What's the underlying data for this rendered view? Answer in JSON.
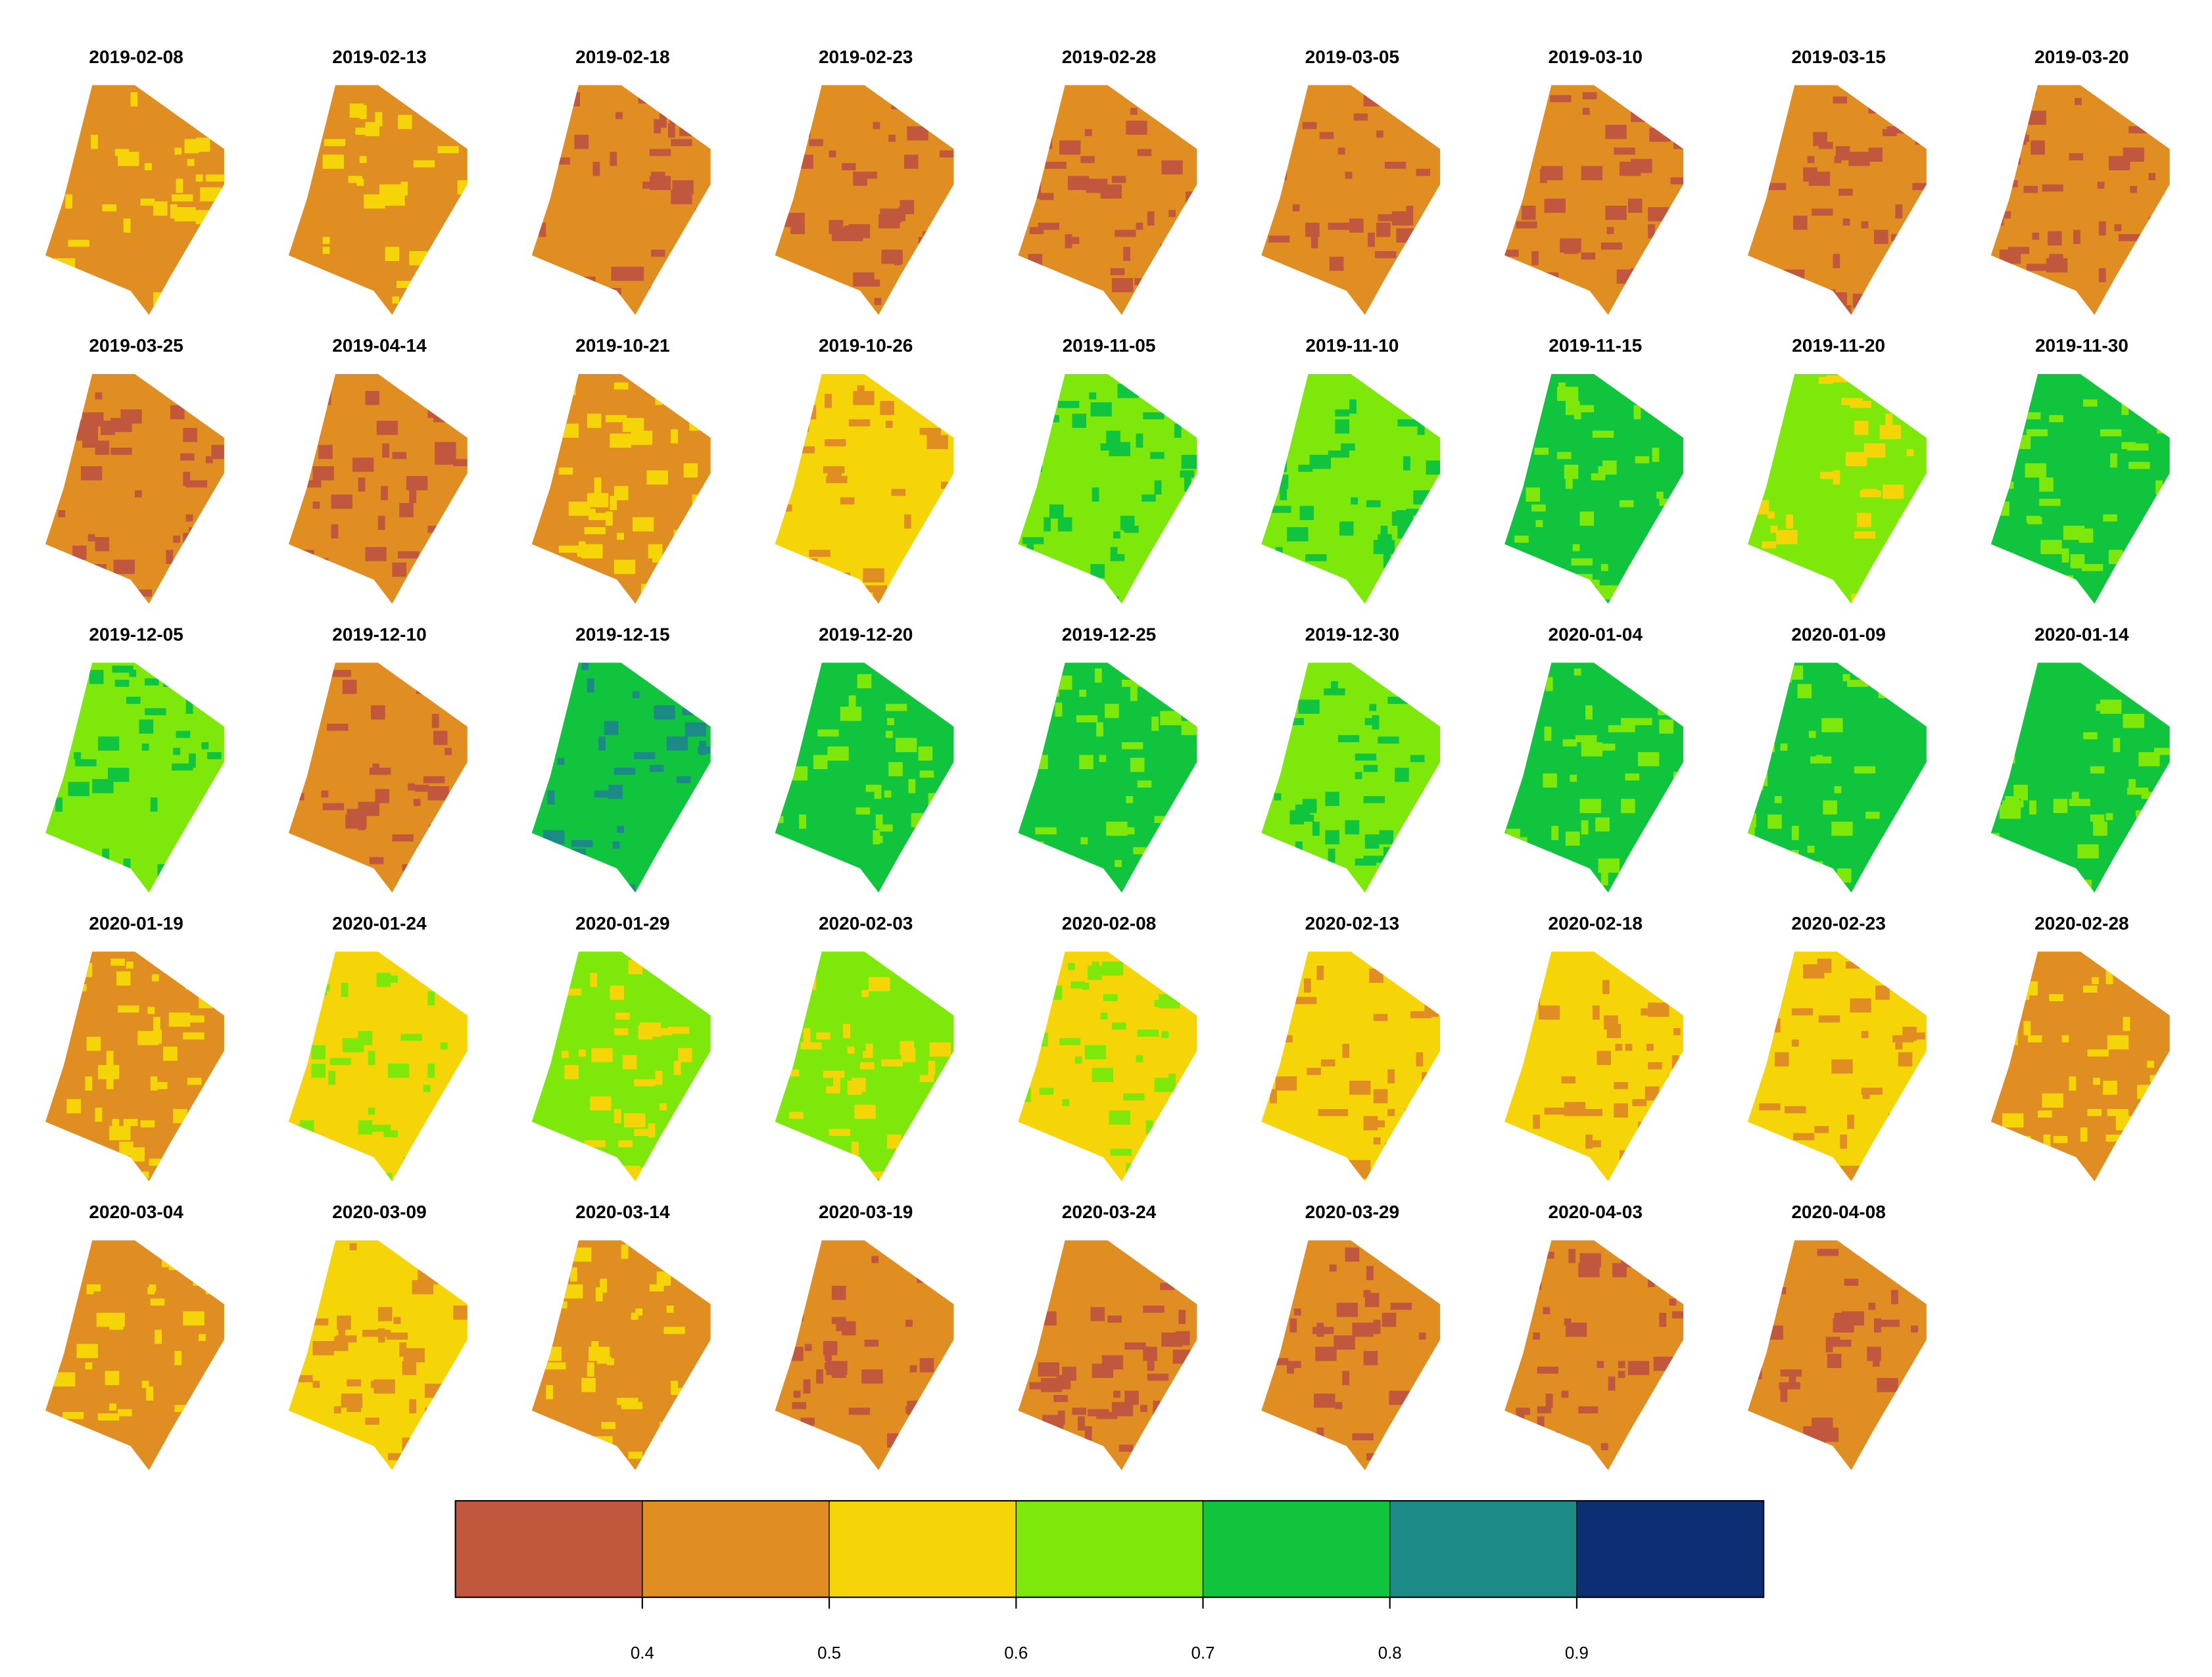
{
  "chart_data": {
    "type": "raster",
    "panels": [
      {
        "date": "2019-02-08",
        "values": [
          0.45,
          0.55
        ]
      },
      {
        "date": "2019-02-13",
        "values": [
          0.45,
          0.55
        ]
      },
      {
        "date": "2019-02-18",
        "values": [
          0.45,
          0.35
        ]
      },
      {
        "date": "2019-02-23",
        "values": [
          0.45,
          0.35
        ]
      },
      {
        "date": "2019-02-28",
        "values": [
          0.45,
          0.35
        ]
      },
      {
        "date": "2019-03-05",
        "values": [
          0.45,
          0.35
        ]
      },
      {
        "date": "2019-03-10",
        "values": [
          0.45,
          0.35
        ]
      },
      {
        "date": "2019-03-15",
        "values": [
          0.45,
          0.35
        ]
      },
      {
        "date": "2019-03-20",
        "values": [
          0.45,
          0.35
        ]
      },
      {
        "date": "2019-03-25",
        "values": [
          0.45,
          0.35
        ]
      },
      {
        "date": "2019-04-14",
        "values": [
          0.45,
          0.35
        ]
      },
      {
        "date": "2019-10-21",
        "values": [
          0.45,
          0.55
        ]
      },
      {
        "date": "2019-10-26",
        "values": [
          0.55,
          0.45
        ]
      },
      {
        "date": "2019-11-05",
        "values": [
          0.65,
          0.75
        ]
      },
      {
        "date": "2019-11-10",
        "values": [
          0.65,
          0.75
        ]
      },
      {
        "date": "2019-11-15",
        "values": [
          0.75,
          0.65
        ]
      },
      {
        "date": "2019-11-20",
        "values": [
          0.65,
          0.55
        ]
      },
      {
        "date": "2019-11-30",
        "values": [
          0.75,
          0.65
        ]
      },
      {
        "date": "2019-12-05",
        "values": [
          0.65,
          0.75
        ]
      },
      {
        "date": "2019-12-10",
        "values": [
          0.45,
          0.35
        ]
      },
      {
        "date": "2019-12-15",
        "values": [
          0.75,
          0.85
        ]
      },
      {
        "date": "2019-12-20",
        "values": [
          0.75,
          0.65
        ]
      },
      {
        "date": "2019-12-25",
        "values": [
          0.75,
          0.65
        ]
      },
      {
        "date": "2019-12-30",
        "values": [
          0.65,
          0.75
        ]
      },
      {
        "date": "2020-01-04",
        "values": [
          0.75,
          0.65
        ]
      },
      {
        "date": "2020-01-09",
        "values": [
          0.75,
          0.65
        ]
      },
      {
        "date": "2020-01-14",
        "values": [
          0.75,
          0.65
        ]
      },
      {
        "date": "2020-01-19",
        "values": [
          0.45,
          0.55
        ]
      },
      {
        "date": "2020-01-24",
        "values": [
          0.55,
          0.65
        ]
      },
      {
        "date": "2020-01-29",
        "values": [
          0.65,
          0.55
        ]
      },
      {
        "date": "2020-02-03",
        "values": [
          0.65,
          0.55
        ]
      },
      {
        "date": "2020-02-08",
        "values": [
          0.55,
          0.65
        ]
      },
      {
        "date": "2020-02-13",
        "values": [
          0.55,
          0.45
        ]
      },
      {
        "date": "2020-02-18",
        "values": [
          0.55,
          0.45
        ]
      },
      {
        "date": "2020-02-23",
        "values": [
          0.55,
          0.45
        ]
      },
      {
        "date": "2020-02-28",
        "values": [
          0.45,
          0.55
        ]
      },
      {
        "date": "2020-03-04",
        "values": [
          0.45,
          0.55
        ]
      },
      {
        "date": "2020-03-09",
        "values": [
          0.55,
          0.45
        ]
      },
      {
        "date": "2020-03-14",
        "values": [
          0.45,
          0.55
        ]
      },
      {
        "date": "2020-03-19",
        "values": [
          0.45,
          0.35
        ]
      },
      {
        "date": "2020-03-24",
        "values": [
          0.45,
          0.35
        ]
      },
      {
        "date": "2020-03-29",
        "values": [
          0.45,
          0.35
        ]
      },
      {
        "date": "2020-04-03",
        "values": [
          0.45,
          0.35
        ]
      },
      {
        "date": "2020-04-08",
        "values": [
          0.45,
          0.35
        ]
      }
    ],
    "colorbar": {
      "breaks": [
        0.3,
        0.4,
        0.5,
        0.6,
        0.7,
        0.8,
        0.9,
        1.0
      ],
      "colors": [
        "#c1583d",
        "#e08d22",
        "#f5d507",
        "#7de80a",
        "#10c43e",
        "#1c8a87",
        "#0c2f73"
      ],
      "ticks": [
        0.4,
        0.5,
        0.6,
        0.7,
        0.8,
        0.9
      ]
    }
  }
}
